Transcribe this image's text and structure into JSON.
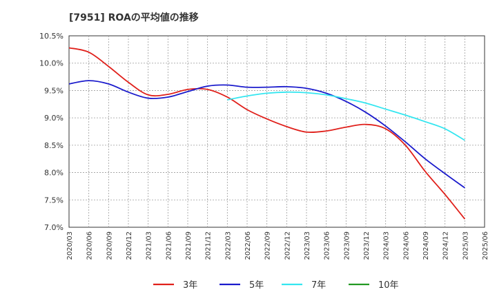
{
  "chart_data": {
    "type": "line",
    "title": "[7951]  ROAの平均値の推移",
    "xlabel": "",
    "ylabel": "",
    "categories": [
      "2020/03",
      "2020/06",
      "2020/09",
      "2020/12",
      "2021/03",
      "2021/06",
      "2021/09",
      "2021/12",
      "2022/03",
      "2022/06",
      "2022/09",
      "2022/12",
      "2023/03",
      "2023/06",
      "2023/09",
      "2023/12",
      "2024/03",
      "2024/06",
      "2024/09",
      "2024/12",
      "2025/03",
      "2025/06"
    ],
    "ylim": [
      7.0,
      10.5
    ],
    "yticks": [
      7.0,
      7.5,
      8.0,
      8.5,
      9.0,
      9.5,
      10.0,
      10.5
    ],
    "ytick_labels": [
      "7.0%",
      "7.5%",
      "8.0%",
      "8.5%",
      "9.0%",
      "9.5%",
      "10.0%",
      "10.5%"
    ],
    "grid": true,
    "legend_position": "bottom",
    "series": [
      {
        "name": "3年",
        "color": "#e0201b",
        "values": [
          10.28,
          10.2,
          9.94,
          9.65,
          9.42,
          9.43,
          9.52,
          9.52,
          9.38,
          9.15,
          8.98,
          8.84,
          8.74,
          8.76,
          8.83,
          8.88,
          8.8,
          8.5,
          8.02,
          7.6,
          7.15,
          null
        ]
      },
      {
        "name": "5年",
        "color": "#1a1acc",
        "values": [
          9.62,
          9.68,
          9.62,
          9.47,
          9.36,
          9.38,
          9.48,
          9.58,
          9.6,
          9.56,
          9.56,
          9.57,
          9.54,
          9.45,
          9.3,
          9.1,
          8.85,
          8.56,
          8.25,
          7.98,
          7.72,
          null
        ]
      },
      {
        "name": "7年",
        "color": "#33e6f0",
        "values": [
          null,
          null,
          null,
          null,
          null,
          null,
          null,
          null,
          9.33,
          9.4,
          9.45,
          9.47,
          9.46,
          9.42,
          9.35,
          9.27,
          9.16,
          9.05,
          8.93,
          8.8,
          8.59,
          null
        ]
      },
      {
        "name": "10年",
        "color": "#229922",
        "values": [
          null,
          null,
          null,
          null,
          null,
          null,
          null,
          null,
          null,
          null,
          null,
          null,
          null,
          null,
          null,
          null,
          null,
          null,
          null,
          null,
          null,
          null
        ]
      }
    ]
  }
}
